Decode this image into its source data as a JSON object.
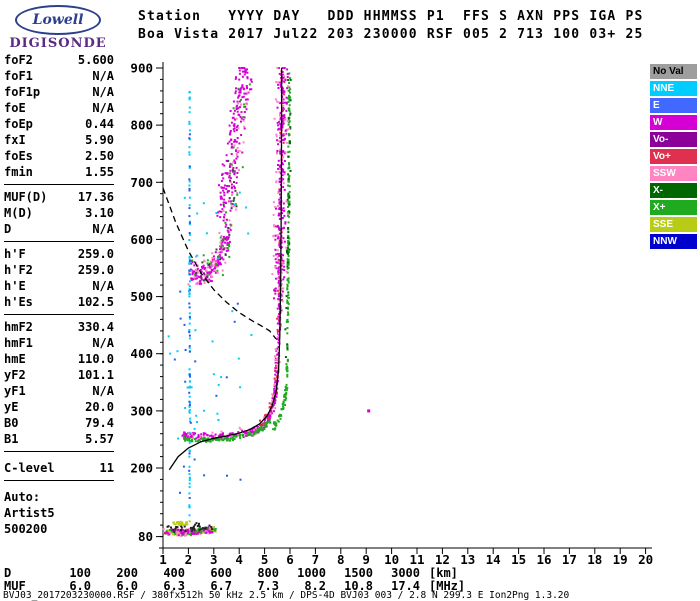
{
  "logo": {
    "name": "Lowell",
    "subname": "DIGISONDE",
    "oval_color": "#2b3f8c",
    "sub_color": "#5a2a84"
  },
  "header": {
    "line1": "Station   YYYY DAY   DDD HHMMSS P1  FFS S AXN PPS IGA PS",
    "line2": "Boa Vista 2017 Jul22 203 230000 RSF 005 2 713 100 03+ 25"
  },
  "parameters": {
    "groups": [
      {
        "rows": [
          [
            "foF2",
            "5.600"
          ],
          [
            "foF1",
            "N/A"
          ],
          [
            "foF1p",
            "N/A"
          ],
          [
            "foE",
            "N/A"
          ],
          [
            "foEp",
            "0.44"
          ],
          [
            "fxI",
            "5.90"
          ],
          [
            "foEs",
            "2.50"
          ],
          [
            "fmin",
            "1.55"
          ]
        ]
      },
      {
        "rows": [
          [
            "MUF(D)",
            "17.36"
          ],
          [
            "M(D)",
            "3.10"
          ],
          [
            "D",
            "N/A"
          ]
        ]
      },
      {
        "rows": [
          [
            "h'F",
            "259.0"
          ],
          [
            "h'F2",
            "259.0"
          ],
          [
            "h'E",
            "N/A"
          ],
          [
            "h'Es",
            "102.5"
          ]
        ]
      },
      {
        "rows": [
          [
            "hmF2",
            "330.4"
          ],
          [
            "hmF1",
            "N/A"
          ],
          [
            "hmE",
            "110.0"
          ],
          [
            "yF2",
            "101.1"
          ],
          [
            "yF1",
            "N/A"
          ],
          [
            "yE",
            "20.0"
          ],
          [
            "B0",
            "79.4"
          ],
          [
            "B1",
            "5.57"
          ]
        ]
      },
      {
        "rows": [
          [
            "C-level",
            "11"
          ]
        ]
      }
    ],
    "footer": [
      "Auto:",
      "Artist5",
      "500200"
    ]
  },
  "legend": {
    "items": [
      {
        "label": "No Val",
        "color": "#9e9e9e",
        "text": "#000000"
      },
      {
        "label": "NNE",
        "color": "#00ccff",
        "text": "#ffffff"
      },
      {
        "label": "E",
        "color": "#4169ff",
        "text": "#ffffff"
      },
      {
        "label": "W",
        "color": "#d400d4",
        "text": "#ffffff"
      },
      {
        "label": "Vo-",
        "color": "#8a0099",
        "text": "#ffffff"
      },
      {
        "label": "Vo+",
        "color": "#e03050",
        "text": "#ffffff"
      },
      {
        "label": "SSW",
        "color": "#ff85c2",
        "text": "#ffffff"
      },
      {
        "label": "X-",
        "color": "#006600",
        "text": "#ffffff"
      },
      {
        "label": "X+",
        "color": "#1faa1f",
        "text": "#ffffff"
      },
      {
        "label": "SSE",
        "color": "#b8cc17",
        "text": "#ffffff"
      },
      {
        "label": "NNW",
        "color": "#0000cc",
        "text": "#ffffff"
      }
    ]
  },
  "distance_muf_table": {
    "rows": [
      {
        "label": "D",
        "values": [
          "100",
          "200",
          "400",
          "600",
          "800",
          "1000",
          "1500",
          "3000"
        ],
        "unit": "[km]"
      },
      {
        "label": "MUF",
        "values": [
          "6.0",
          "6.0",
          "6.3",
          "6.7",
          "7.3",
          "8.2",
          "10.8",
          "17.4"
        ],
        "unit": "[MHz]"
      }
    ]
  },
  "footer_text": "BVJ03_2017203230000.RSF / 380fx512h 50 kHz 2.5 km / DPS-4D BVJ03 003 / 2.8 N 299.3 E Ion2Png 1.3.20",
  "chart_data": {
    "type": "scatter",
    "title": "Boa Vista ionogram 2017 Jul22 203 230000",
    "xlabel": "",
    "ylabel": "",
    "x_units": "MHz",
    "y_units": "km",
    "xlim": [
      1,
      20
    ],
    "ylim": [
      60,
      900
    ],
    "xticks": [
      1,
      2,
      3,
      4,
      5,
      6,
      7,
      8,
      9,
      10,
      11,
      12,
      13,
      14,
      15,
      16,
      17,
      18,
      19,
      20
    ],
    "yticks": [
      80,
      200,
      300,
      400,
      500,
      600,
      700,
      800,
      900
    ],
    "grid": false,
    "legend_position": "right",
    "series": [
      {
        "name": "f2-trace-o-mode",
        "color": "#d400d4",
        "n": 420,
        "jitter_f": 0.07,
        "jitter_h": 6,
        "path": [
          [
            1.8,
            257
          ],
          [
            2.3,
            255
          ],
          [
            3.0,
            255
          ],
          [
            3.7,
            257
          ],
          [
            4.3,
            261
          ],
          [
            4.7,
            267
          ],
          [
            5.0,
            276
          ],
          [
            5.2,
            290
          ],
          [
            5.35,
            312
          ],
          [
            5.45,
            342
          ],
          [
            5.5,
            382
          ],
          [
            5.55,
            445
          ],
          [
            5.6,
            525
          ],
          [
            5.63,
            625
          ],
          [
            5.66,
            725
          ],
          [
            5.69,
            825
          ],
          [
            5.72,
            900
          ]
        ]
      },
      {
        "name": "f2-trace-pink",
        "color": "#ff85c2",
        "n": 90,
        "jitter_f": 0.1,
        "jitter_h": 10,
        "path": [
          [
            1.8,
            257
          ],
          [
            2.6,
            255
          ],
          [
            3.6,
            257
          ],
          [
            4.5,
            263
          ],
          [
            5.0,
            276
          ],
          [
            5.3,
            305
          ],
          [
            5.5,
            382
          ],
          [
            5.58,
            480
          ],
          [
            5.64,
            640
          ],
          [
            5.7,
            820
          ],
          [
            5.72,
            895
          ]
        ]
      },
      {
        "name": "f2-trace-red",
        "color": "#e03050",
        "n": 55,
        "jitter_f": 0.08,
        "jitter_h": 8,
        "path": [
          [
            4.8,
            272
          ],
          [
            5.1,
            288
          ],
          [
            5.3,
            308
          ],
          [
            5.45,
            340
          ],
          [
            5.52,
            390
          ],
          [
            5.58,
            470
          ],
          [
            5.62,
            570
          ],
          [
            5.66,
            690
          ],
          [
            5.7,
            810
          ],
          [
            5.72,
            895
          ]
        ]
      },
      {
        "name": "o-trace-green-underside",
        "color": "#1faa1f",
        "n": 120,
        "jitter_f": 0.07,
        "jitter_h": 3.5,
        "path": [
          [
            1.85,
            251
          ],
          [
            2.4,
            249
          ],
          [
            3.0,
            249
          ],
          [
            3.6,
            251
          ],
          [
            4.2,
            256
          ],
          [
            4.7,
            263
          ],
          [
            5.0,
            272
          ],
          [
            5.2,
            284
          ]
        ]
      },
      {
        "name": "x-trace-bend-green",
        "color": "#1faa1f",
        "n": 55,
        "jitter_f": 0.05,
        "jitter_h": 5,
        "path": [
          [
            5.35,
            270
          ],
          [
            5.55,
            286
          ],
          [
            5.7,
            302
          ],
          [
            5.8,
            322
          ],
          [
            5.88,
            348
          ]
        ]
      },
      {
        "name": "x-trace-asymptote-green",
        "color": "#1faa1f",
        "n": 150,
        "jitter_f": 0.035,
        "jitter_h": 10,
        "path": [
          [
            5.88,
            360
          ],
          [
            5.91,
            450
          ],
          [
            5.93,
            540
          ],
          [
            5.95,
            630
          ],
          [
            5.96,
            720
          ],
          [
            5.97,
            810
          ],
          [
            5.98,
            895
          ]
        ]
      },
      {
        "name": "x-trace-dark-green",
        "color": "#006600",
        "n": 40,
        "jitter_f": 0.06,
        "jitter_h": 12,
        "path": [
          [
            5.85,
            380
          ],
          [
            5.9,
            500
          ],
          [
            5.94,
            620
          ],
          [
            5.97,
            760
          ],
          [
            5.98,
            880
          ]
        ]
      },
      {
        "name": "asymptote-spread-magenta",
        "color": "#d400d4",
        "n": 150,
        "jitter_f": 0.2,
        "jitter_h": 15,
        "path": [
          [
            5.55,
            480
          ],
          [
            5.6,
            560
          ],
          [
            5.63,
            640
          ],
          [
            5.66,
            720
          ],
          [
            5.69,
            800
          ],
          [
            5.71,
            870
          ],
          [
            5.73,
            898
          ]
        ]
      },
      {
        "name": "asymptote-spread-pink",
        "color": "#ff85c2",
        "n": 60,
        "jitter_f": 0.3,
        "jitter_h": 18,
        "path": [
          [
            5.55,
            500
          ],
          [
            5.62,
            640
          ],
          [
            5.68,
            780
          ],
          [
            5.72,
            890
          ]
        ]
      },
      {
        "name": "second-order-lower",
        "color": "#d400d4",
        "n": 150,
        "jitter_f": 0.14,
        "jitter_h": 16,
        "path": [
          [
            2.1,
            548
          ],
          [
            2.45,
            537
          ],
          [
            2.8,
            540
          ],
          [
            3.1,
            556
          ],
          [
            3.4,
            582
          ],
          [
            3.6,
            612
          ]
        ]
      },
      {
        "name": "second-order-upper",
        "color": "#d400d4",
        "n": 200,
        "jitter_f": 0.3,
        "jitter_h": 28,
        "path": [
          [
            3.35,
            640
          ],
          [
            3.55,
            690
          ],
          [
            3.75,
            745
          ],
          [
            3.95,
            805
          ],
          [
            4.15,
            860
          ],
          [
            4.3,
            893
          ]
        ]
      },
      {
        "name": "second-order-pink",
        "color": "#ff85c2",
        "n": 80,
        "jitter_f": 0.25,
        "jitter_h": 25,
        "path": [
          [
            2.2,
            545
          ],
          [
            2.8,
            545
          ],
          [
            3.3,
            575
          ],
          [
            3.6,
            645
          ],
          [
            3.9,
            745
          ],
          [
            4.15,
            855
          ]
        ]
      },
      {
        "name": "second-order-green",
        "color": "#1faa1f",
        "n": 40,
        "jitter_f": 0.3,
        "jitter_h": 30,
        "path": [
          [
            2.4,
            545
          ],
          [
            3.1,
            560
          ],
          [
            3.6,
            640
          ],
          [
            4.0,
            780
          ],
          [
            4.25,
            880
          ]
        ]
      },
      {
        "name": "second-order-dark",
        "color": "#404040",
        "n": 25,
        "jitter_f": 0.3,
        "jitter_h": 30,
        "path": [
          [
            2.5,
            545
          ],
          [
            3.2,
            570
          ],
          [
            3.7,
            670
          ],
          [
            4.1,
            820
          ]
        ]
      },
      {
        "name": "e-region-sse-band",
        "color": "#b8cc17",
        "n": 110,
        "jitter_f": 0.09,
        "jitter_h": 4,
        "path": [
          [
            1.1,
            87
          ],
          [
            1.5,
            86
          ],
          [
            1.9,
            87
          ],
          [
            2.3,
            89
          ],
          [
            2.7,
            91
          ],
          [
            3.1,
            93
          ]
        ]
      },
      {
        "name": "e-region-pink",
        "color": "#ff85c2",
        "n": 70,
        "jitter_f": 0.1,
        "jitter_h": 6,
        "path": [
          [
            1.1,
            87
          ],
          [
            1.7,
            86
          ],
          [
            2.3,
            89
          ],
          [
            3.0,
            92
          ]
        ]
      },
      {
        "name": "e-region-green",
        "color": "#1faa1f",
        "n": 50,
        "jitter_f": 0.1,
        "jitter_h": 5,
        "path": [
          [
            1.2,
            88
          ],
          [
            1.9,
            87
          ],
          [
            2.6,
            90
          ],
          [
            3.1,
            93
          ]
        ]
      },
      {
        "name": "e-region-magenta",
        "color": "#d400d4",
        "n": 45,
        "jitter_f": 0.1,
        "jitter_h": 5,
        "path": [
          [
            1.15,
            88
          ],
          [
            1.8,
            87
          ],
          [
            2.5,
            90
          ],
          [
            3.05,
            92
          ]
        ]
      },
      {
        "name": "e-region-dark",
        "color": "#222222",
        "n": 40,
        "jitter_f": 0.1,
        "jitter_h": 7,
        "path": [
          [
            1.2,
            95
          ],
          [
            1.8,
            96
          ],
          [
            2.4,
            97
          ],
          [
            3.0,
            99
          ]
        ]
      },
      {
        "name": "es-layer",
        "color": "#b8cc17",
        "n": 30,
        "jitter_f": 0.07,
        "jitter_h": 3,
        "path": [
          [
            1.35,
            103
          ],
          [
            1.7,
            103
          ],
          [
            2.05,
            104
          ]
        ]
      },
      {
        "name": "interference-line-cyan",
        "color": "#00ccff",
        "n": 85,
        "jitter_f": 0.015,
        "jitter_h": 0,
        "path": [
          [
            2.05,
            115
          ],
          [
            2.05,
            860
          ]
        ]
      },
      {
        "name": "interference-line-blue",
        "color": "#2b59e8",
        "n": 30,
        "jitter_f": 0.02,
        "jitter_h": 0,
        "path": [
          [
            2.05,
            140
          ],
          [
            2.05,
            800
          ]
        ]
      },
      {
        "name": "noise-cyan",
        "color": "#00ccff",
        "n": 35,
        "region": [
          1.2,
          4.6,
          250,
          700
        ]
      },
      {
        "name": "noise-blue",
        "color": "#2b59e8",
        "n": 18,
        "region": [
          1.3,
          4.2,
          120,
          530
        ]
      },
      {
        "name": "stray-echo",
        "color": "#d400d4",
        "size": 3,
        "points": [
          [
            9.1,
            300
          ]
        ]
      }
    ],
    "lines": [
      {
        "name": "true-height-profile",
        "style": "solid",
        "points": [
          [
            1.25,
            197
          ],
          [
            1.6,
            220
          ],
          [
            2.0,
            235
          ],
          [
            2.5,
            246
          ],
          [
            3.0,
            252
          ],
          [
            3.5,
            256
          ],
          [
            4.0,
            261
          ],
          [
            4.4,
            267
          ],
          [
            4.8,
            277
          ],
          [
            5.1,
            291
          ],
          [
            5.3,
            309
          ],
          [
            5.45,
            333
          ],
          [
            5.55,
            372
          ],
          [
            5.6,
            432
          ],
          [
            5.63,
            520
          ],
          [
            5.65,
            620
          ],
          [
            5.66,
            720
          ],
          [
            5.67,
            820
          ],
          [
            5.67,
            900
          ]
        ]
      },
      {
        "name": "model-curve-dashed",
        "style": "dashed",
        "points": [
          [
            1.0,
            690
          ],
          [
            1.5,
            630
          ],
          [
            2.0,
            580
          ],
          [
            2.5,
            541
          ],
          [
            3.0,
            512
          ],
          [
            3.5,
            490
          ],
          [
            4.0,
            472
          ],
          [
            4.5,
            458
          ],
          [
            4.9,
            448
          ],
          [
            5.2,
            440
          ],
          [
            5.45,
            426
          ]
        ]
      }
    ]
  }
}
